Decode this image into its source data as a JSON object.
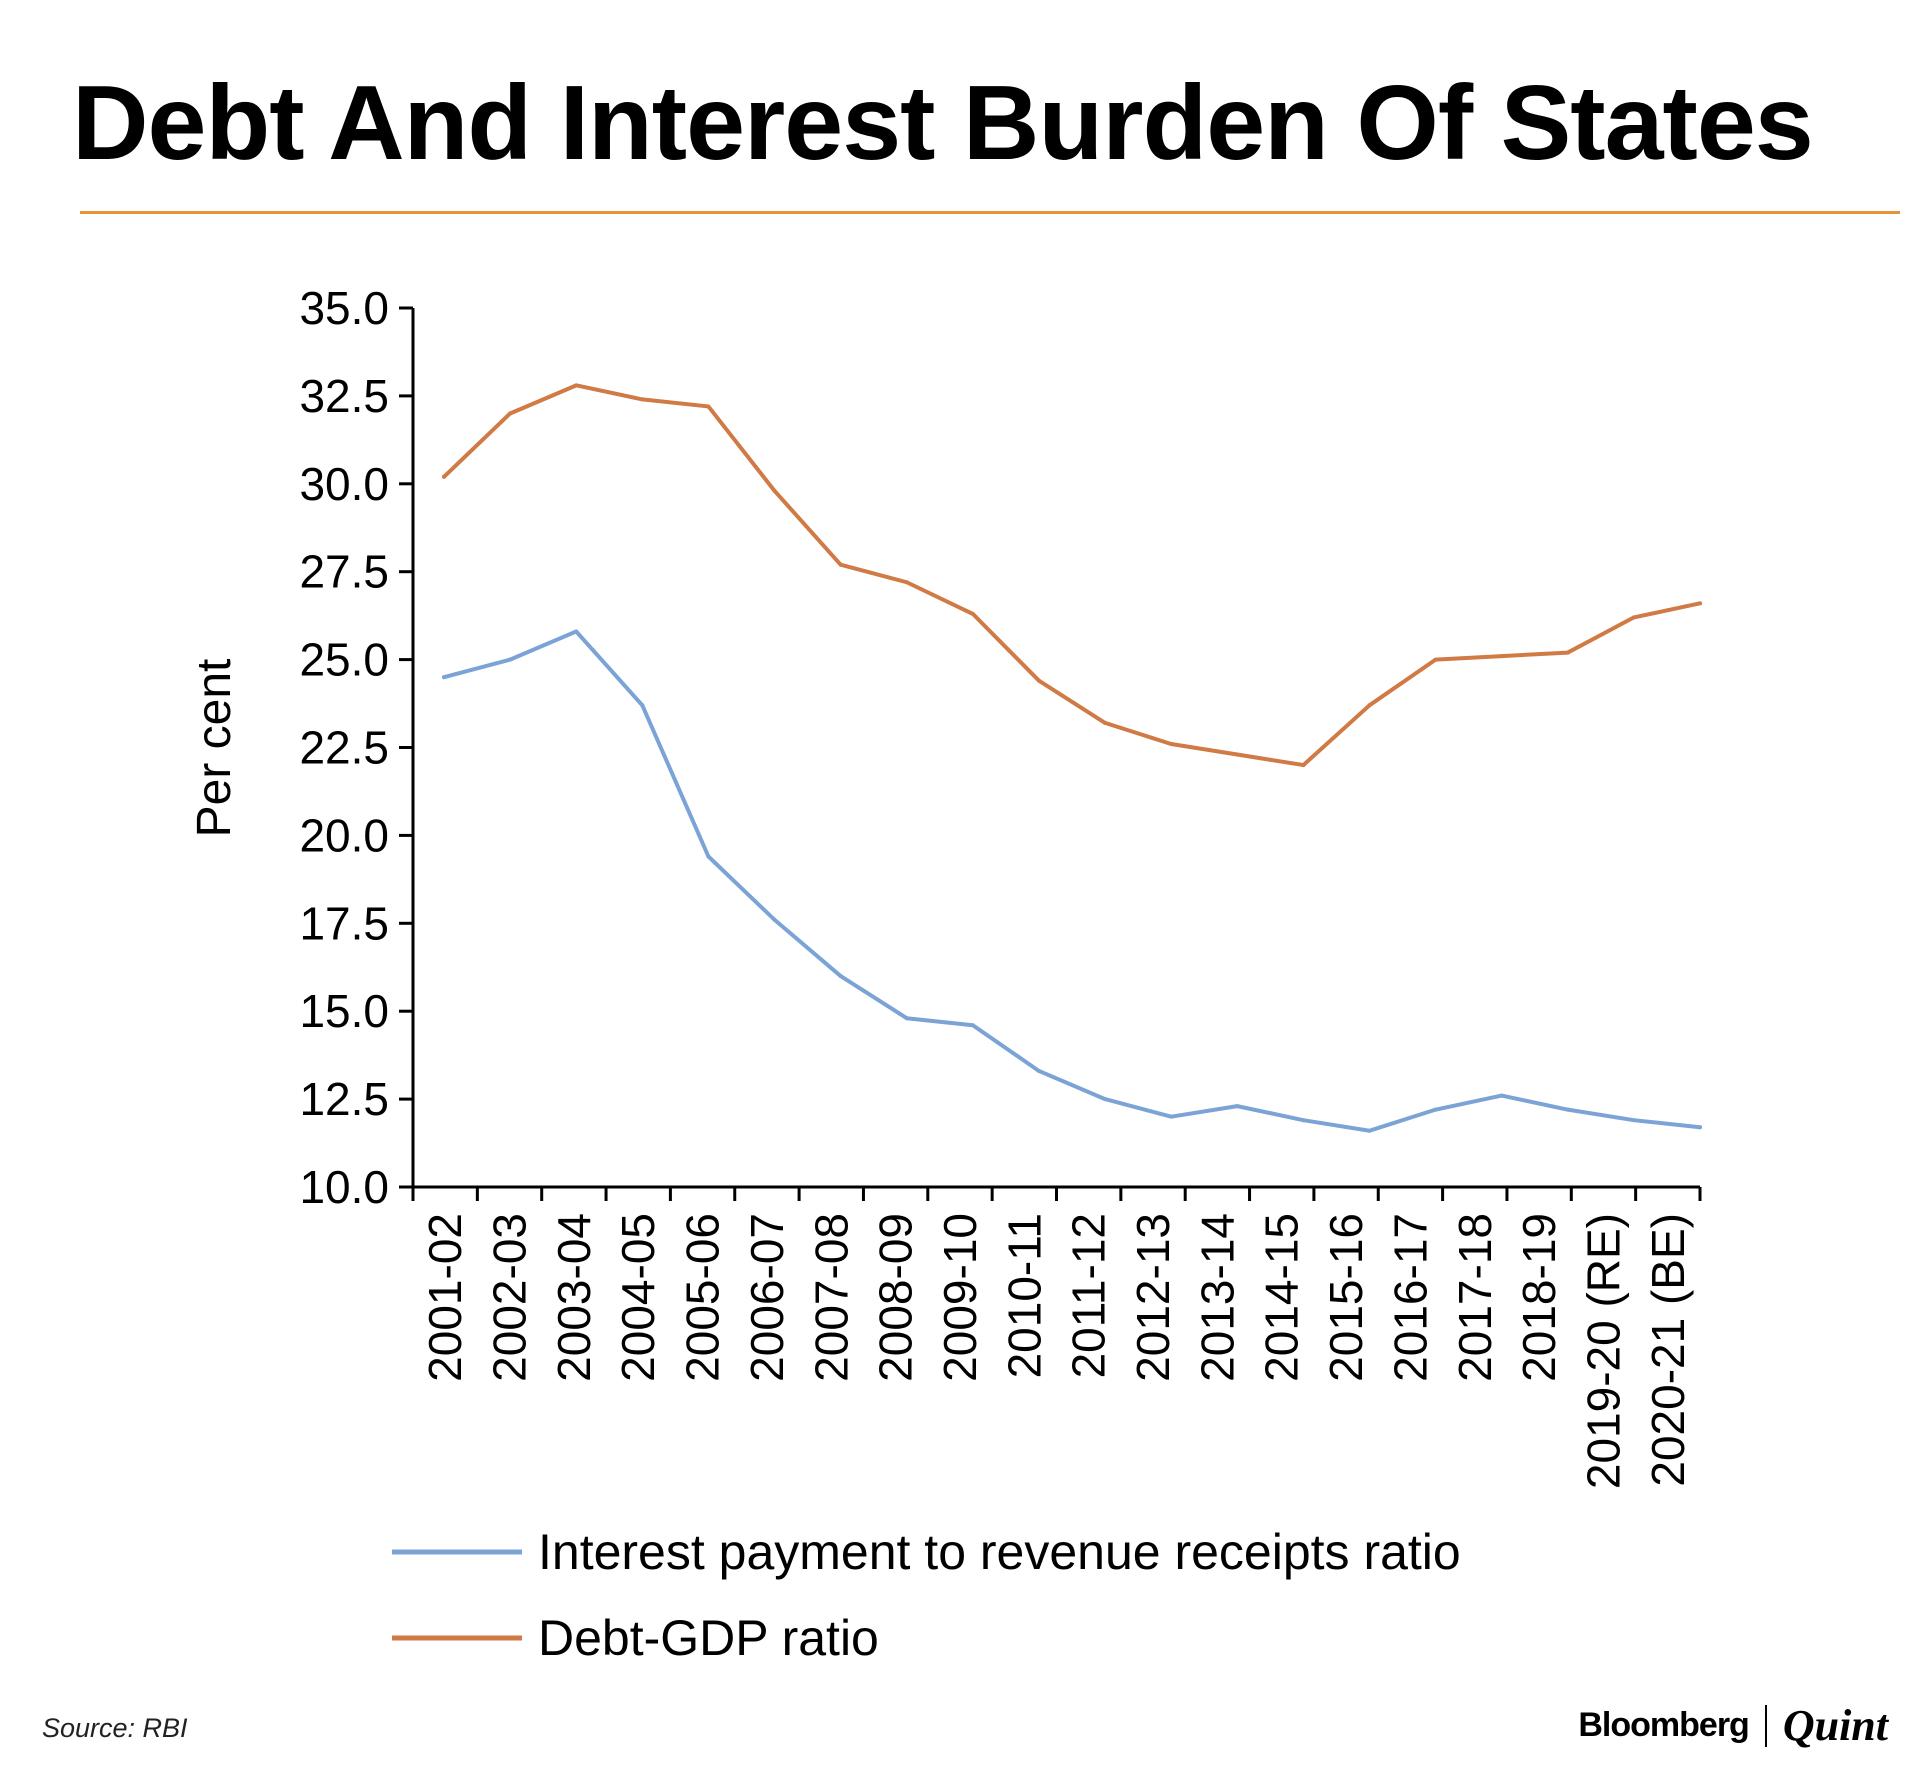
{
  "header": {
    "title": "Debt And Interest Burden Of States"
  },
  "footer": {
    "source": "Source: RBI",
    "brand_primary": "Bloomberg",
    "brand_secondary": "Quint"
  },
  "colors": {
    "accent_rule": "#e8913d",
    "interest_series": "#7ba3d6",
    "debt_series": "#d07a45",
    "axis": "#000000"
  },
  "chart_data": {
    "type": "line",
    "title": "Debt And Interest Burden Of States",
    "xlabel": "",
    "ylabel": "Per cent",
    "ylim": [
      10.0,
      35.0
    ],
    "yticks": [
      "10.0",
      "12.5",
      "15.0",
      "17.5",
      "20.0",
      "22.5",
      "25.0",
      "27.5",
      "30.0",
      "32.5",
      "35.0"
    ],
    "grid": false,
    "legend_position": "bottom",
    "categories": [
      "2001-02",
      "2002-03",
      "2003-04",
      "2004-05",
      "2005-06",
      "2006-07",
      "2007-08",
      "2008-09",
      "2009-10",
      "2010-11",
      "2011-12",
      "2012-13",
      "2013-14",
      "2014-15",
      "2015-16",
      "2016-17",
      "2017-18",
      "2018-19",
      "2019-20 (RE)",
      "2020-21 (BE)"
    ],
    "series": [
      {
        "name": "Interest payment to revenue receipts ratio",
        "color": "#7ba3d6",
        "values": [
          24.5,
          25.0,
          25.8,
          23.7,
          19.4,
          17.6,
          16.0,
          14.8,
          14.6,
          13.3,
          12.5,
          12.0,
          12.3,
          11.9,
          11.6,
          12.2,
          12.6,
          12.2,
          11.9,
          11.7
        ]
      },
      {
        "name": "Debt-GDP ratio",
        "color": "#d07a45",
        "values": [
          30.2,
          32.0,
          32.8,
          32.4,
          32.2,
          29.8,
          27.7,
          27.2,
          26.3,
          24.4,
          23.2,
          22.6,
          22.3,
          22.0,
          23.7,
          25.0,
          25.1,
          25.2,
          26.2,
          26.6
        ]
      }
    ]
  }
}
